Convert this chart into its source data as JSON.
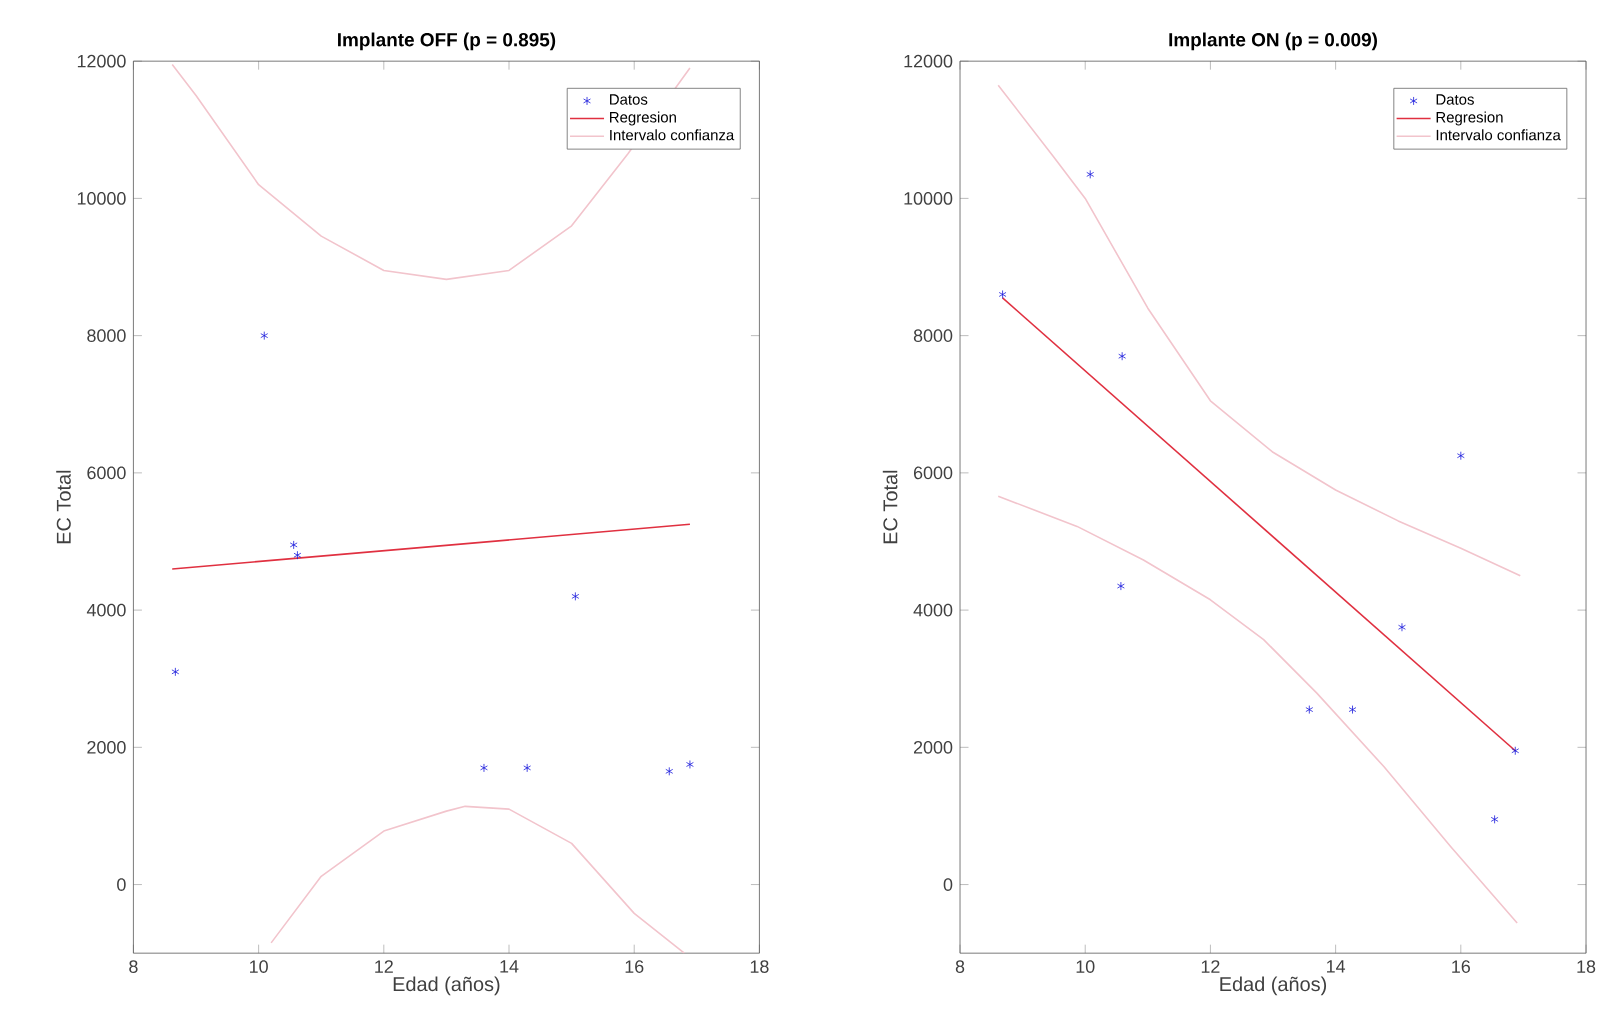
{
  "chart_data": [
    {
      "type": "scatter",
      "title": "Implante OFF (p = 0.895)",
      "xlabel": "Edad (años)",
      "ylabel": "EC Total",
      "xlim": [
        8,
        18
      ],
      "ylim": [
        -1000,
        12000
      ],
      "xticks": [
        8,
        10,
        12,
        14,
        16,
        18
      ],
      "yticks": [
        0,
        2000,
        4000,
        6000,
        8000,
        10000,
        12000
      ],
      "legend": "top right",
      "series": [
        {
          "name": "Datos",
          "type": "scatter",
          "marker": "cross",
          "color": "#1a1adc",
          "x": [
            8.67,
            10.09,
            10.56,
            10.62,
            13.6,
            14.29,
            15.06,
            16.56,
            16.89
          ],
          "values": [
            3100,
            8000,
            4950,
            4800,
            1700,
            1700,
            4200,
            1650,
            1750
          ]
        },
        {
          "name": "Regresion",
          "type": "line",
          "color": "#e03040",
          "x": [
            8.62,
            16.89
          ],
          "values": [
            4600,
            5250
          ]
        },
        {
          "name": "Intervalo confianza",
          "type": "line",
          "color": "#f2c4cc",
          "x": [
            8.62,
            9,
            10,
            11,
            12,
            13,
            14,
            15,
            15.9,
            16.89
          ],
          "values": [
            11950,
            11500,
            10200,
            9450,
            8950,
            8820,
            8950,
            9600,
            10650,
            11900
          ]
        },
        {
          "type": "line",
          "color": "#f2c4cc",
          "x": [
            10.2,
            11,
            12,
            13,
            13.3,
            14,
            15,
            16,
            16.8
          ],
          "values": [
            -850,
            120,
            780,
            1070,
            1140,
            1100,
            600,
            -420,
            -1000
          ]
        }
      ]
    },
    {
      "type": "scatter",
      "title": "Implante ON (p = 0.009)",
      "xlabel": "Edad (años)",
      "ylabel": "EC Total",
      "xlim": [
        8,
        18
      ],
      "ylim": [
        -1000,
        12000
      ],
      "xticks": [
        8,
        10,
        12,
        14,
        16,
        18
      ],
      "yticks": [
        0,
        2000,
        4000,
        6000,
        8000,
        10000,
        12000
      ],
      "legend": "top right",
      "series": [
        {
          "name": "Datos",
          "type": "scatter",
          "marker": "cross",
          "color": "#1a1adc",
          "x": [
            8.68,
            10.08,
            10.59,
            10.57,
            13.58,
            14.27,
            15.06,
            16.0,
            16.54,
            16.87
          ],
          "values": [
            8600,
            10350,
            7700,
            4350,
            2550,
            2550,
            3750,
            6250,
            950,
            1950
          ]
        },
        {
          "name": "Regresion",
          "type": "line",
          "color": "#e03040",
          "x": [
            8.68,
            16.87
          ],
          "values": [
            8550,
            1950
          ]
        },
        {
          "name": "Intervalo confianza",
          "type": "line",
          "color": "#f2c4cc",
          "x": [
            8.61,
            9.5,
            10,
            11,
            12,
            13,
            14,
            15,
            16,
            16.95
          ],
          "values": [
            11650,
            10600,
            10000,
            8400,
            7050,
            6300,
            5750,
            5300,
            4900,
            4500
          ]
        },
        {
          "type": "line",
          "color": "#f2c4cc",
          "x": [
            8.61,
            9.87,
            10.93,
            12.0,
            12.85,
            13.7,
            14.77,
            15.84,
            16.9
          ],
          "values": [
            5660,
            5220,
            4730,
            4150,
            3570,
            2790,
            1720,
            550,
            -560
          ]
        }
      ]
    }
  ]
}
